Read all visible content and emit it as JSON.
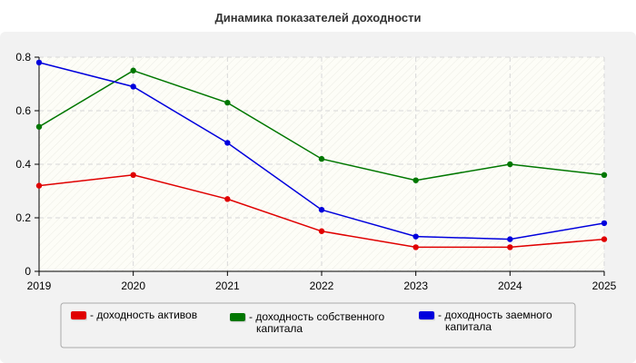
{
  "chart_data": {
    "type": "line",
    "title": "Динамика показателей доходности",
    "xlabel": "",
    "ylabel": "",
    "x": [
      "2019",
      "2020",
      "2021",
      "2022",
      "2023",
      "2024",
      "2025"
    ],
    "ylim": [
      0,
      0.8
    ],
    "yticks": [
      "0",
      "0.2",
      "0.4",
      "0.6",
      "0.8"
    ],
    "grid": true,
    "legend_position": "bottom",
    "series": [
      {
        "name": "- доходность активов",
        "name_lines": [
          "- доходность активов"
        ],
        "color": "#e00000",
        "values": [
          0.32,
          0.36,
          0.27,
          0.15,
          0.09,
          0.09,
          0.12
        ]
      },
      {
        "name": "- доходность собственного капитала",
        "name_lines": [
          "- доходность собственного",
          "капитала"
        ],
        "color": "#007700",
        "values": [
          0.54,
          0.75,
          0.63,
          0.42,
          0.34,
          0.4,
          0.36
        ]
      },
      {
        "name": "- доходность заемного капитала",
        "name_lines": [
          "- доходность заемного",
          "капитала"
        ],
        "color": "#0000dd",
        "values": [
          0.78,
          0.69,
          0.48,
          0.23,
          0.13,
          0.12,
          0.18
        ]
      }
    ]
  }
}
